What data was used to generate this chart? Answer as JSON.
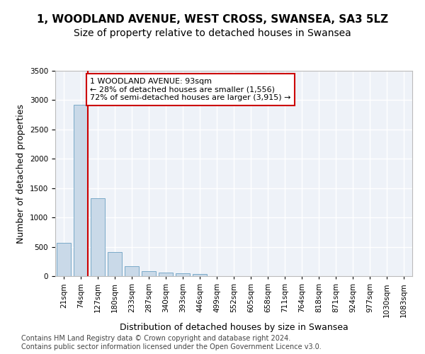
{
  "title1": "1, WOODLAND AVENUE, WEST CROSS, SWANSEA, SA3 5LZ",
  "title2": "Size of property relative to detached houses in Swansea",
  "xlabel": "Distribution of detached houses by size in Swansea",
  "ylabel": "Number of detached properties",
  "categories": [
    "21sqm",
    "74sqm",
    "127sqm",
    "180sqm",
    "233sqm",
    "287sqm",
    "340sqm",
    "393sqm",
    "446sqm",
    "499sqm",
    "552sqm",
    "605sqm",
    "658sqm",
    "711sqm",
    "764sqm",
    "818sqm",
    "871sqm",
    "924sqm",
    "977sqm",
    "1030sqm",
    "1083sqm"
  ],
  "values": [
    570,
    2920,
    1330,
    410,
    170,
    80,
    55,
    45,
    40,
    0,
    0,
    0,
    0,
    0,
    0,
    0,
    0,
    0,
    0,
    0,
    0
  ],
  "bar_color": "#c9d9e8",
  "bar_edge_color": "#7aaac8",
  "vline_color": "#cc0000",
  "annotation_text": "1 WOODLAND AVENUE: 93sqm\n← 28% of detached houses are smaller (1,556)\n72% of semi-detached houses are larger (3,915) →",
  "annotation_box_color": "#ffffff",
  "annotation_box_edge_color": "#cc0000",
  "ylim": [
    0,
    3500
  ],
  "yticks": [
    0,
    500,
    1000,
    1500,
    2000,
    2500,
    3000,
    3500
  ],
  "background_color": "#eef2f8",
  "grid_color": "#ffffff",
  "footer_text": "Contains HM Land Registry data © Crown copyright and database right 2024.\nContains public sector information licensed under the Open Government Licence v3.0.",
  "title1_fontsize": 11,
  "title2_fontsize": 10,
  "xlabel_fontsize": 9,
  "ylabel_fontsize": 9,
  "tick_fontsize": 7.5,
  "annotation_fontsize": 8,
  "footer_fontsize": 7
}
